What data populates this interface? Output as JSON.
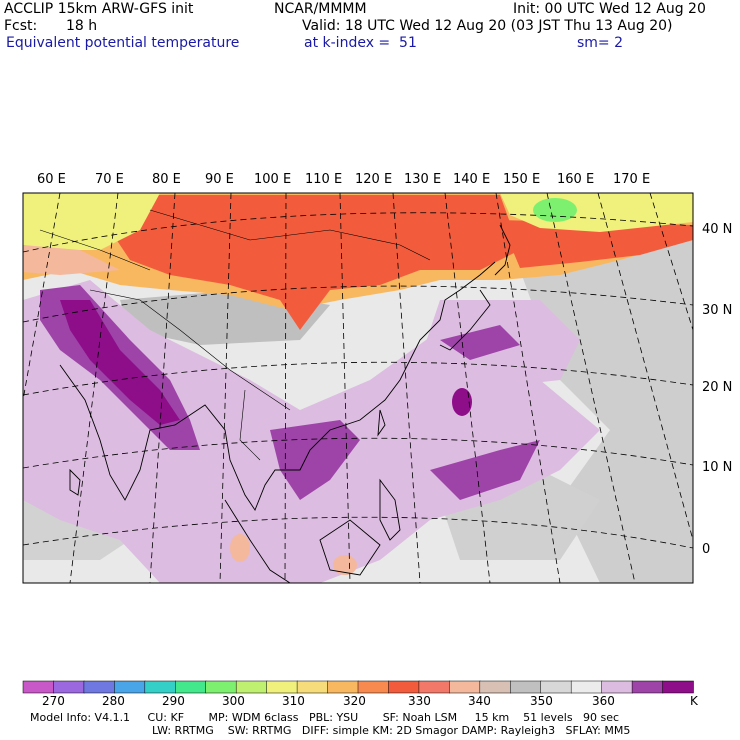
{
  "header": {
    "model": "ACCLIP 15km ARW-GFS init",
    "org": "NCAR/MMMM",
    "init": "Init: 00 UTC Wed 12 Aug 20",
    "fcst_label": "Fcst:",
    "fcst_value": "18 h",
    "valid": "Valid: 18 UTC Wed 12 Aug 20 (03 JST Thu 13 Aug 20)",
    "field": "Equivalent potential temperature",
    "level": "at k-index =  51",
    "smooth": "sm= 2"
  },
  "lon_labels": [
    "60 E",
    "70 E",
    "80 E",
    "90 E",
    "100 E",
    "110 E",
    "120 E",
    "130 E",
    "140 E",
    "150 E",
    "160 E",
    "170 E"
  ],
  "lat_labels": [
    "40 N",
    "30 N",
    "20 N",
    "10 N",
    "0"
  ],
  "colorbar": {
    "unit": "K",
    "labels": [
      "270",
      "280",
      "290",
      "300",
      "310",
      "320",
      "330",
      "340",
      "350",
      "360"
    ],
    "colors": [
      "#c857c8",
      "#9b68e0",
      "#6f78e0",
      "#4aa4e8",
      "#34d0c8",
      "#44e88c",
      "#7ef070",
      "#c0f070",
      "#f0f07c",
      "#f7dc7c",
      "#f8b860",
      "#f88a50",
      "#f25c3c",
      "#f2786a",
      "#f4b89c",
      "#d8c0b4",
      "#c0c0c0",
      "#d8d8d8",
      "#ececec",
      "#dcbce0",
      "#9e44a8",
      "#8e0e8a"
    ]
  },
  "model_info": {
    "line1": "Model Info: V4.1.1     CU: KF       MP: WDM 6class   PBL: YSU       SF: Noah LSM     15 km    51 levels   90 sec",
    "line2": "LW: RRTMG    SW: RRTMG   DIFF: simple KM: 2D Smagor DAMP: Rayleigh3   SFLAY: MM5"
  }
}
